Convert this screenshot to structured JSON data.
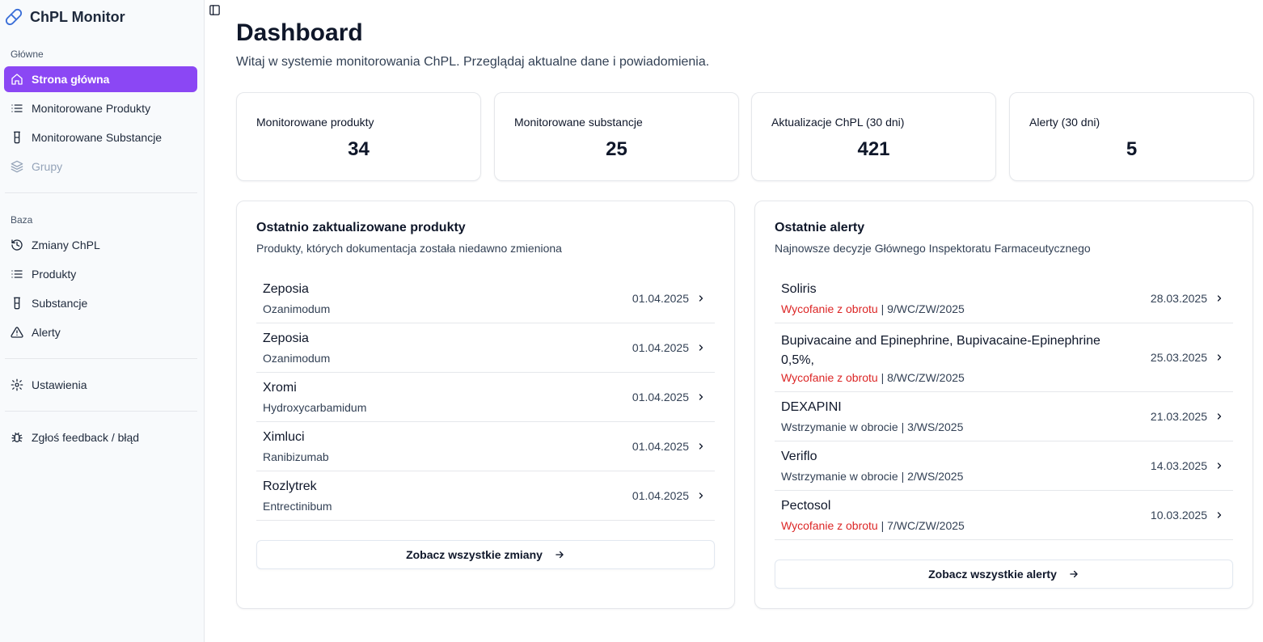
{
  "app": {
    "title": "ChPL Monitor",
    "accent": "#8b47f4",
    "danger": "#dc2626"
  },
  "sidebar": {
    "groups": [
      {
        "label": "Główne",
        "items": [
          {
            "label": "Strona główna",
            "icon": "home-icon",
            "active": true
          },
          {
            "label": "Monitorowane Produkty",
            "icon": "list-icon"
          },
          {
            "label": "Monitorowane Substancje",
            "icon": "flask-icon"
          },
          {
            "label": "Grupy",
            "icon": "layers-icon",
            "disabled": true
          }
        ]
      },
      {
        "label": "Baza",
        "items": [
          {
            "label": "Zmiany ChPL",
            "icon": "history-icon"
          },
          {
            "label": "Produkty",
            "icon": "list-icon"
          },
          {
            "label": "Substancje",
            "icon": "flask-icon"
          },
          {
            "label": "Alerty",
            "icon": "alert-triangle-icon"
          }
        ]
      }
    ],
    "settings": {
      "label": "Ustawienia",
      "icon": "gear-icon"
    },
    "feedback": {
      "label": "Zgłoś feedback / błąd",
      "icon": "bug-icon"
    }
  },
  "main": {
    "title": "Dashboard",
    "subtitle": "Witaj w systemie monitorowania ChPL. Przeglądaj aktualne dane i powiadomienia.",
    "stats": [
      {
        "label": "Monitorowane produkty",
        "value": "34"
      },
      {
        "label": "Monitorowane substancje",
        "value": "25"
      },
      {
        "label": "Aktualizacje ChPL (30 dni)",
        "value": "421"
      },
      {
        "label": "Alerty (30 dni)",
        "value": "5"
      }
    ],
    "recent_products": {
      "title": "Ostatnio zaktualizowane produkty",
      "description": "Produkty, których dokumentacja została niedawno zmieniona",
      "rows": [
        {
          "name": "Zeposia",
          "substance": "Ozanimodum",
          "date": "01.04.2025"
        },
        {
          "name": "Zeposia",
          "substance": "Ozanimodum",
          "date": "01.04.2025"
        },
        {
          "name": "Xromi",
          "substance": "Hydroxycarbamidum",
          "date": "01.04.2025"
        },
        {
          "name": "Ximluci",
          "substance": "Ranibizumab",
          "date": "01.04.2025"
        },
        {
          "name": "Rozlytrek",
          "substance": "Entrectinibum",
          "date": "01.04.2025"
        }
      ],
      "button": "Zobacz wszystkie zmiany"
    },
    "recent_alerts": {
      "title": "Ostatnie alerty",
      "description": "Najnowsze decyzje Głównego Inspektoratu Farmaceutycznego",
      "rows": [
        {
          "name": "Soliris",
          "type": "Wycofanie z obrotu",
          "severity": "danger",
          "ref": " | 9/WC/ZW/2025",
          "date": "28.03.2025"
        },
        {
          "name": "Bupivacaine and Epinephrine, Bupivacaine-Epinephrine 0,5%,",
          "type": "Wycofanie z obrotu",
          "severity": "danger",
          "ref": " | 8/WC/ZW/2025",
          "date": "25.03.2025"
        },
        {
          "name": "DEXAPINI",
          "type": "Wstrzymanie w obrocie",
          "severity": "normal",
          "ref": " | 3/WS/2025",
          "date": "21.03.2025"
        },
        {
          "name": "Veriflo",
          "type": "Wstrzymanie w obrocie",
          "severity": "normal",
          "ref": " | 2/WS/2025",
          "date": "14.03.2025"
        },
        {
          "name": "Pectosol",
          "type": "Wycofanie z obrotu",
          "severity": "danger",
          "ref": " | 7/WC/ZW/2025",
          "date": "10.03.2025"
        }
      ],
      "button": "Zobacz wszystkie alerty"
    }
  }
}
